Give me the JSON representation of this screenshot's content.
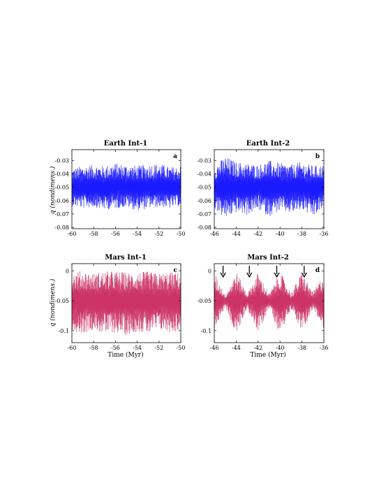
{
  "chart_data": [
    {
      "panel": "a",
      "type": "line",
      "title": "Earth Int-1",
      "xlabel": "",
      "ylabel": "q (nondimens.)",
      "xlim": [
        -60,
        -50
      ],
      "ylim": [
        -0.081,
        -0.022
      ],
      "xticks": [
        "-60",
        "-58",
        "-56",
        "-54",
        "-52",
        "-50"
      ],
      "yticks": [
        "-0.03",
        "-0.04",
        "-0.05",
        "-0.06",
        "-0.07",
        "-0.08"
      ],
      "ytick_values": [
        -0.03,
        -0.04,
        -0.05,
        -0.06,
        -0.07,
        -0.08
      ],
      "color": "#1a1aff",
      "series": [
        {
          "mean": -0.05,
          "typical_range": [
            -0.068,
            -0.032
          ],
          "x": [
            -60,
            -59,
            -58,
            -57,
            -56,
            -55,
            -54,
            -53,
            -52,
            -51,
            -50
          ],
          "upper": [
            -0.036,
            -0.034,
            -0.033,
            -0.034,
            -0.032,
            -0.033,
            -0.034,
            -0.033,
            -0.032,
            -0.035,
            -0.034
          ],
          "lower": [
            -0.064,
            -0.066,
            -0.065,
            -0.067,
            -0.066,
            -0.065,
            -0.068,
            -0.066,
            -0.065,
            -0.066,
            -0.064
          ]
        }
      ]
    },
    {
      "panel": "b",
      "type": "line",
      "title": "Earth Int-2",
      "xlabel": "",
      "ylabel": "",
      "xlim": [
        -46,
        -36
      ],
      "ylim": [
        -0.081,
        -0.022
      ],
      "xticks": [
        "-46",
        "-44",
        "-42",
        "-40",
        "-38",
        "-36"
      ],
      "yticks": [
        "-0.03",
        "-0.04",
        "-0.05",
        "-0.06",
        "-0.07",
        "-0.08"
      ],
      "ytick_values": [
        -0.03,
        -0.04,
        -0.05,
        -0.06,
        -0.07,
        -0.08
      ],
      "color": "#1a1aff",
      "series": [
        {
          "mean": -0.05,
          "typical_range": [
            -0.074,
            -0.027
          ],
          "x": [
            -46,
            -45,
            -44,
            -43,
            -42,
            -41,
            -40,
            -39,
            -38,
            -37,
            -36
          ],
          "upper": [
            -0.034,
            -0.027,
            -0.031,
            -0.032,
            -0.033,
            -0.03,
            -0.032,
            -0.033,
            -0.031,
            -0.034,
            -0.033
          ],
          "lower": [
            -0.066,
            -0.074,
            -0.069,
            -0.071,
            -0.067,
            -0.072,
            -0.068,
            -0.07,
            -0.067,
            -0.073,
            -0.066
          ]
        }
      ]
    },
    {
      "panel": "c",
      "type": "line",
      "title": "Mars Int-1",
      "xlabel": "Time (Myr)",
      "ylabel": "q (nondimens.)",
      "xlim": [
        -60,
        -50
      ],
      "ylim": [
        -0.12,
        0.012
      ],
      "xticks": [
        "-60",
        "-58",
        "-56",
        "-54",
        "-52",
        "-50"
      ],
      "yticks": [
        "0",
        "-0.05",
        "-0.1"
      ],
      "ytick_values": [
        0,
        -0.05,
        -0.1
      ],
      "color": "#cc3366",
      "series": [
        {
          "mean": -0.05,
          "typical_range": [
            -0.11,
            0.0
          ],
          "x": [
            -60,
            -59,
            -58,
            -57,
            -56,
            -55,
            -54,
            -53,
            -52,
            -51,
            -50
          ],
          "upper": [
            -0.002,
            0.0,
            -0.004,
            -0.001,
            0.0,
            -0.003,
            -0.002,
            -0.001,
            -0.004,
            -0.002,
            -0.003
          ],
          "lower": [
            -0.1,
            -0.105,
            -0.098,
            -0.107,
            -0.103,
            -0.108,
            -0.101,
            -0.106,
            -0.099,
            -0.104,
            -0.1
          ]
        }
      ]
    },
    {
      "panel": "d",
      "type": "line",
      "title": "Mars Int-2",
      "xlabel": "Time (Myr)",
      "ylabel": "",
      "xlim": [
        -46,
        -36
      ],
      "ylim": [
        -0.12,
        0.012
      ],
      "xticks": [
        "-46",
        "-44",
        "-42",
        "-40",
        "-38",
        "-36"
      ],
      "yticks": [
        "0",
        "-0.05",
        "-0.1"
      ],
      "ytick_values": [
        0,
        -0.05,
        -0.1
      ],
      "color": "#cc3366",
      "annotations": [
        {
          "type": "arrow",
          "x": -45.2
        },
        {
          "type": "arrow",
          "x": -42.8
        },
        {
          "type": "arrow",
          "x": -40.3
        },
        {
          "type": "arrow",
          "x": -37.8
        }
      ],
      "series": [
        {
          "mean": -0.05,
          "typical_range": [
            -0.11,
            0.0
          ],
          "x": [
            -46,
            -45,
            -44,
            -43,
            -42,
            -41,
            -40,
            -39,
            -38,
            -37,
            -36
          ],
          "upper": [
            -0.003,
            -0.04,
            0.0,
            -0.038,
            -0.002,
            -0.039,
            -0.001,
            -0.037,
            -0.002,
            -0.036,
            -0.004
          ],
          "lower": [
            -0.098,
            -0.06,
            -0.108,
            -0.062,
            -0.105,
            -0.061,
            -0.107,
            -0.063,
            -0.104,
            -0.064,
            -0.1
          ]
        }
      ]
    }
  ]
}
